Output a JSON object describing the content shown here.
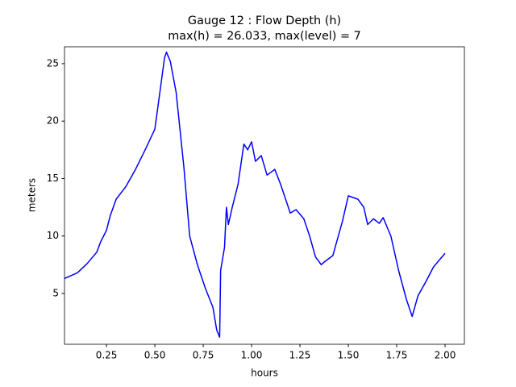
{
  "chart_data": {
    "type": "line",
    "title": "Gauge 12 : Flow Depth (h)",
    "subtitle": "max(h) =  26.033,    max(level) = 7",
    "x_label": "hours",
    "y_label": "meters",
    "x": [
      0.033,
      0.1,
      0.15,
      0.2,
      0.22,
      0.25,
      0.27,
      0.3,
      0.35,
      0.4,
      0.45,
      0.5,
      0.53,
      0.55,
      0.56,
      0.58,
      0.61,
      0.65,
      0.68,
      0.72,
      0.76,
      0.8,
      0.82,
      0.835,
      0.84,
      0.86,
      0.87,
      0.88,
      0.9,
      0.93,
      0.96,
      0.98,
      1.0,
      1.02,
      1.05,
      1.08,
      1.12,
      1.15,
      1.2,
      1.23,
      1.27,
      1.3,
      1.33,
      1.36,
      1.38,
      1.42,
      1.47,
      1.5,
      1.55,
      1.58,
      1.6,
      1.63,
      1.66,
      1.68,
      1.72,
      1.76,
      1.8,
      1.83,
      1.86,
      1.9,
      1.94,
      1.97,
      2.0
    ],
    "series": [
      {
        "name": "h",
        "color": "#0000ff",
        "values": [
          6.3,
          6.8,
          7.6,
          8.6,
          9.5,
          10.5,
          11.8,
          13.2,
          14.3,
          15.8,
          17.5,
          19.3,
          23,
          25.5,
          26.0,
          25.2,
          22.5,
          16,
          10,
          7.5,
          5.5,
          3.8,
          1.8,
          1.2,
          7.0,
          9.0,
          12.5,
          11.0,
          12.5,
          14.5,
          18.0,
          17.5,
          18.2,
          16.5,
          17.0,
          15.3,
          15.8,
          14.5,
          12.0,
          12.3,
          11.5,
          10.0,
          8.2,
          7.5,
          7.8,
          8.3,
          11.3,
          13.5,
          13.2,
          12.5,
          11.0,
          11.5,
          11.1,
          11.6,
          10.0,
          7.0,
          4.5,
          3.0,
          4.8,
          6.0,
          7.3,
          7.9,
          8.5
        ]
      }
    ],
    "xlim": [
      0.033,
      2.1
    ],
    "ylim": [
      0.58,
      26.47
    ],
    "xticks": [
      {
        "value": 0.25,
        "label": "0.25"
      },
      {
        "value": 0.5,
        "label": "0.50"
      },
      {
        "value": 0.75,
        "label": "0.75"
      },
      {
        "value": 1.0,
        "label": "1.00"
      },
      {
        "value": 1.25,
        "label": "1.25"
      },
      {
        "value": 1.5,
        "label": "1.50"
      },
      {
        "value": 1.75,
        "label": "1.75"
      },
      {
        "value": 2.0,
        "label": "2.00"
      }
    ],
    "yticks": [
      5,
      10,
      15,
      20,
      25
    ]
  }
}
